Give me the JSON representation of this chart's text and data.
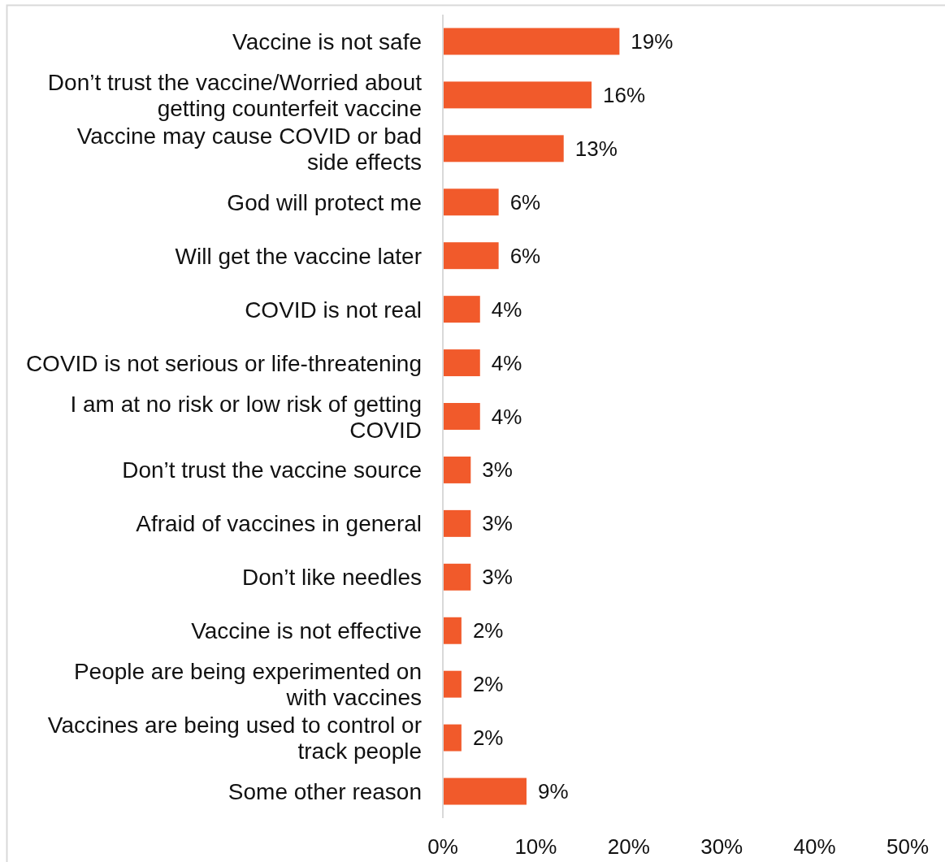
{
  "chart_data": {
    "type": "bar",
    "orientation": "horizontal",
    "categories": [
      "Vaccine is not safe",
      "Don’t trust the vaccine/Worried about\ngetting counterfeit vaccine",
      "Vaccine may cause COVID or bad\nside effects",
      "God will protect me",
      "Will get the vaccine later",
      "COVID is not real",
      "COVID is not serious or life-threatening",
      "I am at no risk or low risk of getting\nCOVID",
      "Don’t trust the vaccine source",
      "Afraid of vaccines in general",
      "Don’t like needles",
      "Vaccine is not effective",
      "People are being experimented on\nwith vaccines",
      "Vaccines are being used to control or\ntrack people",
      "Some other reason"
    ],
    "values": [
      19,
      16,
      13,
      6,
      6,
      4,
      4,
      4,
      3,
      3,
      3,
      2,
      2,
      2,
      9
    ],
    "value_labels": [
      "19%",
      "16%",
      "13%",
      "6%",
      "6%",
      "4%",
      "4%",
      "4%",
      "3%",
      "3%",
      "3%",
      "2%",
      "2%",
      "2%",
      "9%"
    ],
    "color": "#f15a2b",
    "xlim": [
      0,
      50
    ],
    "xticks": [
      {
        "value": 0,
        "label": "0%"
      },
      {
        "value": 10,
        "label": "10%"
      },
      {
        "value": 20,
        "label": "20%"
      },
      {
        "value": 30,
        "label": "30%"
      },
      {
        "value": 40,
        "label": "40%"
      },
      {
        "value": 50,
        "label": "50%"
      }
    ]
  }
}
